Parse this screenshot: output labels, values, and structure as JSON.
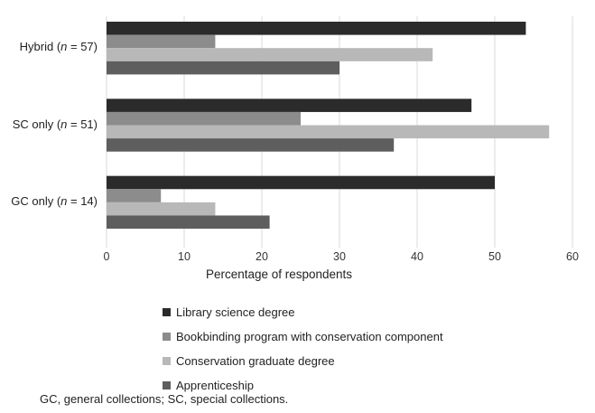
{
  "chart_data": {
    "type": "bar",
    "orientation": "horizontal",
    "categories": [
      {
        "prefix": "Hybrid (",
        "italic": "n",
        "suffix": " = 57)"
      },
      {
        "prefix": "SC only (",
        "italic": "n",
        "suffix": " = 51)"
      },
      {
        "prefix": "GC only (",
        "italic": "n",
        "suffix": " = 14)"
      }
    ],
    "series": [
      {
        "name": "Library science degree",
        "color": "#2b2b2b",
        "values": [
          54,
          47,
          50
        ]
      },
      {
        "name": "Bookbinding program with conservation component",
        "color": "#8c8c8c",
        "values": [
          14,
          25,
          7
        ]
      },
      {
        "name": "Conservation graduate degree",
        "color": "#b8b8b8",
        "values": [
          42,
          57,
          14
        ]
      },
      {
        "name": "Apprenticeship",
        "color": "#5e5e5e",
        "values": [
          30,
          37,
          21
        ]
      }
    ],
    "xlim": [
      0,
      60
    ],
    "xticks": [
      "0",
      "10",
      "20",
      "30",
      "40",
      "50",
      "60"
    ],
    "xlabel": "Percentage of respondents",
    "grid": "vertical",
    "legend_position": "bottom"
  },
  "footnote": "GC, general collections; SC, special collections."
}
